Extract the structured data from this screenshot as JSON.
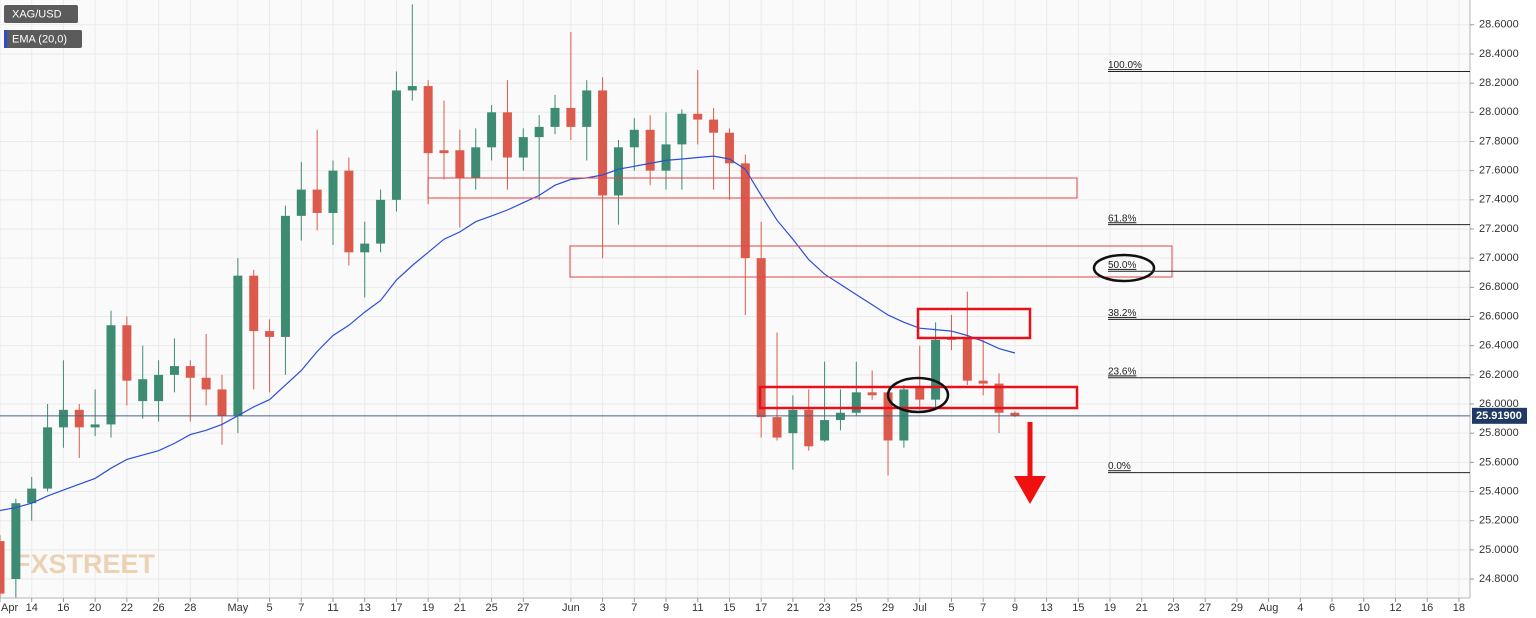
{
  "chart_data": {
    "type": "candlestick",
    "symbol": "XAG/USD",
    "indicator": "EMA (20,0)",
    "watermark": "FXSTREET",
    "up_color": "#3d8b73",
    "down_color": "#dc5a4b",
    "ema_color": "#2a4fd6",
    "open": [
      25.06,
      24.8,
      25.32,
      25.42,
      25.84,
      25.96,
      25.84,
      25.86,
      26.54,
      26.02,
      26.02,
      26.2,
      26.26,
      26.18,
      26.1,
      25.92,
      26.88,
      26.5,
      26.46,
      27.29,
      27.47,
      27.31,
      27.6,
      27.04,
      27.1,
      27.4,
      28.15,
      28.18,
      27.74,
      27.74,
      27.55,
      27.76,
      28.0,
      27.69,
      27.83,
      27.9,
      28.03,
      27.9,
      28.15,
      27.43,
      27.76,
      27.88,
      27.6,
      27.78,
      27.99,
      27.95,
      27.86,
      27.65,
      27.0,
      25.91,
      25.8,
      25.96,
      25.75,
      25.89,
      25.94,
      26.08,
      26.08,
      25.75,
      26.12,
      26.03,
      26.45,
      26.45,
      26.16,
      26.14,
      25.94
    ],
    "high": [
      25.1,
      25.35,
      25.5,
      26.0,
      26.3,
      26.0,
      26.1,
      26.64,
      26.6,
      26.4,
      26.3,
      26.45,
      26.3,
      26.48,
      26.2,
      27.0,
      26.92,
      26.58,
      27.36,
      27.66,
      27.88,
      27.67,
      27.69,
      27.25,
      27.47,
      28.28,
      28.74,
      28.22,
      28.08,
      27.88,
      27.89,
      28.05,
      28.22,
      27.89,
      27.98,
      28.12,
      28.55,
      28.22,
      28.24,
      27.81,
      27.96,
      27.98,
      28.0,
      28.02,
      28.29,
      28.03,
      27.89,
      27.71,
      27.25,
      26.49,
      26.06,
      26.1,
      26.29,
      26.1,
      26.29,
      26.23,
      26.08,
      26.13,
      26.4,
      26.56,
      26.61,
      26.77,
      26.44,
      26.21,
      25.95
    ],
    "low": [
      24.6,
      24.65,
      25.2,
      25.4,
      25.7,
      25.63,
      25.78,
      25.77,
      25.99,
      25.9,
      25.88,
      26.08,
      25.88,
      25.99,
      25.72,
      25.8,
      26.1,
      26.08,
      26.2,
      27.12,
      27.19,
      27.09,
      26.95,
      26.73,
      27.04,
      27.32,
      28.08,
      27.37,
      27.54,
      27.21,
      27.47,
      27.67,
      27.47,
      27.6,
      27.4,
      27.85,
      27.81,
      27.67,
      27.0,
      27.23,
      27.6,
      27.5,
      27.47,
      27.47,
      27.78,
      27.47,
      27.4,
      26.61,
      25.77,
      25.75,
      25.55,
      25.68,
      25.74,
      25.82,
      25.92,
      26.03,
      25.51,
      25.7,
      25.96,
      25.96,
      26.37,
      26.13,
      26.06,
      25.8,
      25.91
    ],
    "close": [
      24.7,
      25.32,
      25.42,
      25.84,
      25.96,
      25.84,
      25.86,
      26.54,
      26.16,
      26.17,
      26.2,
      26.26,
      26.18,
      26.1,
      25.92,
      26.88,
      26.5,
      26.46,
      27.29,
      27.47,
      27.31,
      27.6,
      27.04,
      27.1,
      27.4,
      28.15,
      28.18,
      27.72,
      27.72,
      27.55,
      27.76,
      28.0,
      27.69,
      27.83,
      27.9,
      28.03,
      27.9,
      28.15,
      27.43,
      27.76,
      27.88,
      27.6,
      27.78,
      27.99,
      27.95,
      27.86,
      27.65,
      27.0,
      25.91,
      25.77,
      25.96,
      25.71,
      25.89,
      25.94,
      26.08,
      26.06,
      25.75,
      26.1,
      26.03,
      26.44,
      26.44,
      26.16,
      26.14,
      25.94,
      25.92
    ],
    "ema": [
      25.27,
      25.29,
      25.32,
      25.37,
      25.41,
      25.45,
      25.49,
      25.56,
      25.62,
      25.65,
      25.68,
      25.73,
      25.79,
      25.82,
      25.86,
      25.92,
      25.98,
      26.03,
      26.13,
      26.23,
      26.36,
      26.47,
      26.54,
      26.63,
      26.71,
      26.85,
      26.95,
      27.04,
      27.13,
      27.18,
      27.25,
      27.29,
      27.33,
      27.38,
      27.43,
      27.5,
      27.54,
      27.55,
      27.57,
      27.61,
      27.63,
      27.65,
      27.67,
      27.68,
      27.69,
      27.7,
      27.68,
      27.61,
      27.43,
      27.26,
      27.13,
      26.99,
      26.89,
      26.82,
      26.75,
      26.68,
      26.61,
      26.56,
      26.52,
      26.51,
      26.5,
      26.47,
      26.43,
      26.38,
      26.35
    ],
    "last_price": 25.919,
    "last_price_label": "25.91900",
    "fib_levels": [
      {
        "label": "100.0%",
        "price": 28.28
      },
      {
        "label": "61.8%",
        "price": 27.23
      },
      {
        "label": "50.0%",
        "price": 26.91
      },
      {
        "label": "38.2%",
        "price": 26.58
      },
      {
        "label": "23.6%",
        "price": 26.18
      },
      {
        "label": "0.0%",
        "price": 25.53
      }
    ],
    "xlim": [
      0,
      92.7
    ],
    "xticks": [
      {
        "value": 0,
        "label": "Apr"
      },
      {
        "value": 2,
        "label": "14"
      },
      {
        "value": 4,
        "label": "16"
      },
      {
        "value": 6,
        "label": "20"
      },
      {
        "value": 8,
        "label": "22"
      },
      {
        "value": 10,
        "label": "26"
      },
      {
        "value": 12,
        "label": "28"
      },
      {
        "value": 15,
        "label": "May"
      },
      {
        "value": 17,
        "label": "5"
      },
      {
        "value": 19,
        "label": "7"
      },
      {
        "value": 21,
        "label": "11"
      },
      {
        "value": 23,
        "label": "13"
      },
      {
        "value": 25,
        "label": "17"
      },
      {
        "value": 27,
        "label": "19"
      },
      {
        "value": 29,
        "label": "21"
      },
      {
        "value": 31,
        "label": "25"
      },
      {
        "value": 33,
        "label": "27"
      },
      {
        "value": 36,
        "label": "Jun"
      },
      {
        "value": 38,
        "label": "3"
      },
      {
        "value": 40,
        "label": "7"
      },
      {
        "value": 42,
        "label": "9"
      },
      {
        "value": 44,
        "label": "11"
      },
      {
        "value": 46,
        "label": "15"
      },
      {
        "value": 48,
        "label": "17"
      },
      {
        "value": 50,
        "label": "21"
      },
      {
        "value": 52,
        "label": "23"
      },
      {
        "value": 54,
        "label": "25"
      },
      {
        "value": 56,
        "label": "29"
      },
      {
        "value": 58,
        "label": "Jul"
      },
      {
        "value": 60,
        "label": "5"
      },
      {
        "value": 62,
        "label": "7"
      },
      {
        "value": 64,
        "label": "9"
      },
      {
        "value": 66,
        "label": "13"
      },
      {
        "value": 68,
        "label": "15"
      },
      {
        "value": 70,
        "label": "19"
      },
      {
        "value": 72,
        "label": "21"
      },
      {
        "value": 74,
        "label": "23"
      },
      {
        "value": 76,
        "label": "27"
      },
      {
        "value": 78,
        "label": "29"
      },
      {
        "value": 80,
        "label": "Aug"
      },
      {
        "value": 82,
        "label": "4"
      },
      {
        "value": 84,
        "label": "6"
      },
      {
        "value": 86,
        "label": "10"
      },
      {
        "value": 88,
        "label": "12"
      },
      {
        "value": 90,
        "label": "16"
      },
      {
        "value": 92,
        "label": "18"
      }
    ],
    "ylim": [
      24.67,
      28.77
    ],
    "yticks": [
      {
        "value": 24.8,
        "label": "24.8000"
      },
      {
        "value": 25.0,
        "label": "25.0000"
      },
      {
        "value": 25.2,
        "label": "25.2000"
      },
      {
        "value": 25.4,
        "label": "25.4000"
      },
      {
        "value": 25.6,
        "label": "25.6000"
      },
      {
        "value": 25.8,
        "label": "25.8000"
      },
      {
        "value": 26.0,
        "label": "26.0000"
      },
      {
        "value": 26.2,
        "label": "26.2000"
      },
      {
        "value": 26.4,
        "label": "26.4000"
      },
      {
        "value": 26.6,
        "label": "26.6000"
      },
      {
        "value": 26.8,
        "label": "26.8000"
      },
      {
        "value": 27.0,
        "label": "27.0000"
      },
      {
        "value": 27.2,
        "label": "27.2000"
      },
      {
        "value": 27.4,
        "label": "27.4000"
      },
      {
        "value": 27.6,
        "label": "27.6000"
      },
      {
        "value": 27.8,
        "label": "27.8000"
      },
      {
        "value": 28.0,
        "label": "28.0000"
      },
      {
        "value": 28.2,
        "label": "28.2000"
      },
      {
        "value": 28.4,
        "label": "28.4000"
      },
      {
        "value": 28.6,
        "label": "28.6000"
      }
    ],
    "grid": true
  }
}
